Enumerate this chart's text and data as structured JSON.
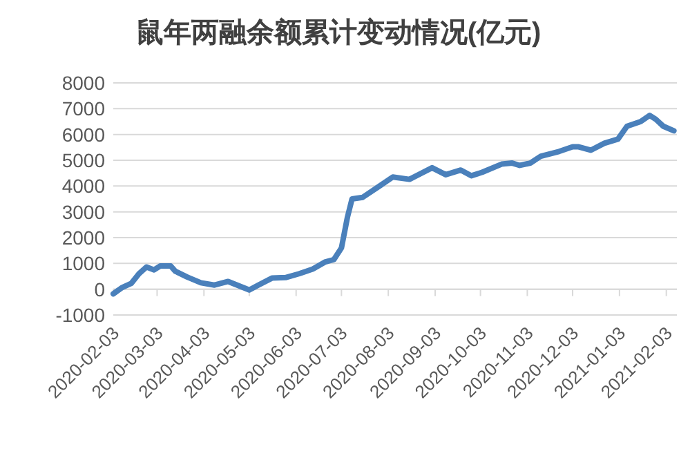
{
  "chart_data": {
    "type": "line",
    "title": "鼠年两融余额累计变动情况(亿元)",
    "x": [
      "2020-02-03",
      "2020-02-09",
      "2020-02-15",
      "2020-02-20",
      "2020-02-25",
      "2020-03-01",
      "2020-03-05",
      "2020-03-12",
      "2020-03-15",
      "2020-03-23",
      "2020-04-01",
      "2020-04-10",
      "2020-04-19",
      "2020-04-25",
      "2020-05-03",
      "2020-05-09",
      "2020-05-18",
      "2020-05-27",
      "2020-06-05",
      "2020-06-14",
      "2020-06-22",
      "2020-06-28",
      "2020-07-03",
      "2020-07-07",
      "2020-07-10",
      "2020-07-17",
      "2020-07-28",
      "2020-08-06",
      "2020-08-17",
      "2020-09-01",
      "2020-09-10",
      "2020-09-20",
      "2020-09-27",
      "2020-10-04",
      "2020-10-17",
      "2020-10-24",
      "2020-10-29",
      "2020-11-05",
      "2020-11-12",
      "2020-11-24",
      "2020-12-03",
      "2020-12-07",
      "2020-12-15",
      "2020-12-24",
      "2021-01-02",
      "2021-01-08",
      "2021-01-17",
      "2021-01-23",
      "2021-01-27",
      "2021-02-01",
      "2021-02-08"
    ],
    "series": [
      {
        "color": "#4a80bb",
        "values": [
          -180,
          70,
          230,
          600,
          860,
          750,
          900,
          900,
          700,
          470,
          250,
          160,
          300,
          160,
          -30,
          160,
          430,
          450,
          600,
          780,
          1050,
          1150,
          1600,
          2800,
          3500,
          3560,
          3990,
          4350,
          4260,
          4710,
          4440,
          4620,
          4400,
          4530,
          4850,
          4890,
          4800,
          4890,
          5160,
          5340,
          5520,
          5520,
          5390,
          5660,
          5820,
          6320,
          6500,
          6740,
          6590,
          6320,
          6140
        ]
      }
    ],
    "xlim": [
      "2020-02-03",
      "2021-02-10"
    ],
    "xticks": [
      "2020-02-03",
      "2020-03-03",
      "2020-04-03",
      "2020-05-03",
      "2020-06-03",
      "2020-07-03",
      "2020-08-03",
      "2020-09-03",
      "2020-10-03",
      "2020-11-03",
      "2020-12-03",
      "2021-01-03",
      "2021-02-03"
    ],
    "ylim": [
      -1000,
      8000
    ],
    "yticks": [
      -1000,
      0,
      1000,
      2000,
      3000,
      4000,
      5000,
      6000,
      7000,
      8000
    ],
    "grid": "y"
  }
}
